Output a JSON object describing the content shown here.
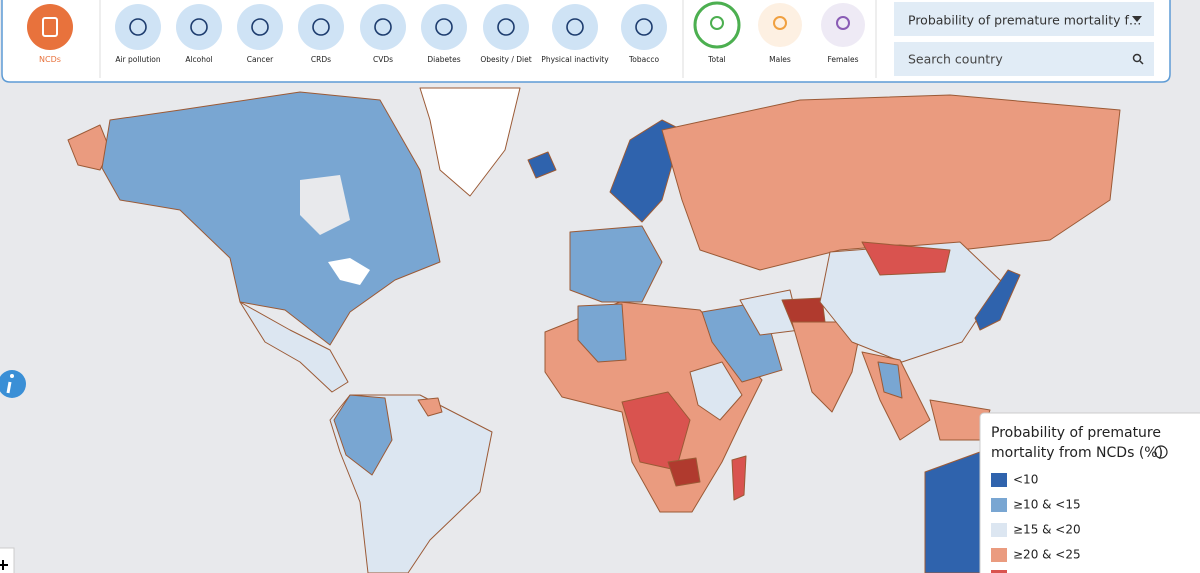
{
  "toolbar": {
    "ncds": "NCDs",
    "risk_factors": [
      "Air pollution",
      "Alcohol",
      "Cancer",
      "CRDs",
      "CVDs",
      "Diabetes",
      "Obesity / Diet",
      "Physical inactivity",
      "Tobacco"
    ],
    "sex": [
      "Total",
      "Males",
      "Females"
    ]
  },
  "indicator_select": "Probability of premature mortality f…",
  "search_placeholder": "Search country",
  "legend": {
    "title_lines": [
      "Probability of premature",
      "mortality from NCDs (%)"
    ],
    "items": [
      {
        "label": "<10",
        "color": "#2f63ad"
      },
      {
        "label": "≥10 & <15",
        "color": "#79a6d2"
      },
      {
        "label": "≥15 & <20",
        "color": "#dce6f1"
      },
      {
        "label": "≥20 & <25",
        "color": "#ea9b7f"
      }
    ]
  }
}
